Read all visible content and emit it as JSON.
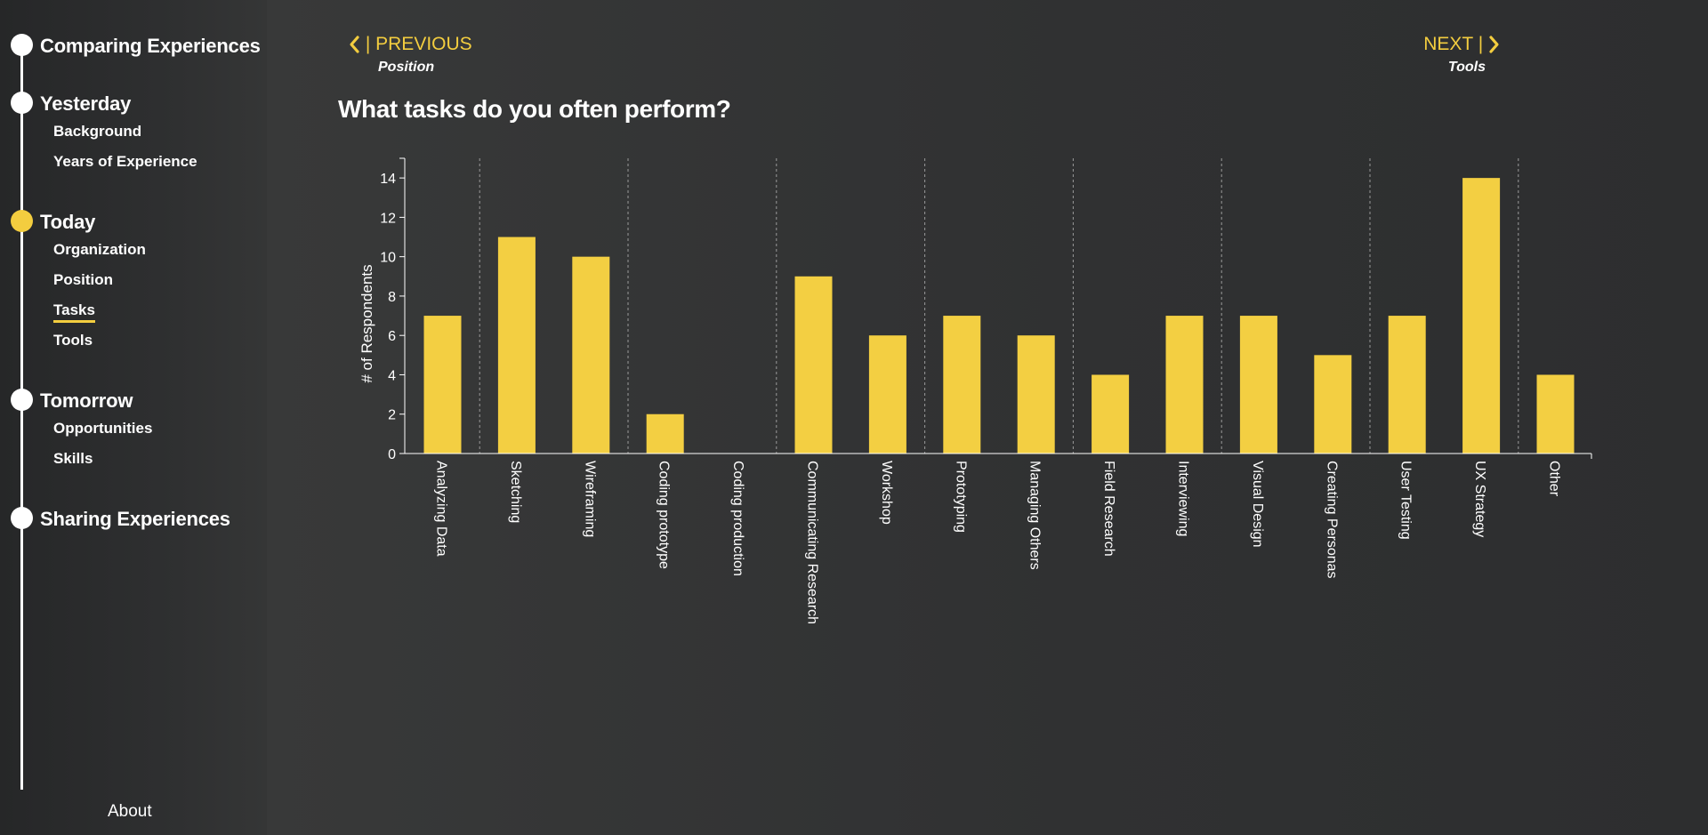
{
  "sidebar": {
    "sections": [
      {
        "title": "Comparing Experiences",
        "active": false,
        "items": []
      },
      {
        "title": "Yesterday",
        "active": false,
        "items": [
          "Background",
          "Years of Experience"
        ]
      },
      {
        "title": "Today",
        "active": true,
        "items": [
          "Organization",
          "Position",
          "Tasks",
          "Tools"
        ],
        "current_item": "Tasks"
      },
      {
        "title": "Tomorrow",
        "active": false,
        "items": [
          "Opportunities",
          "Skills"
        ]
      },
      {
        "title": "Sharing Experiences",
        "active": false,
        "items": []
      }
    ],
    "about_label": "About"
  },
  "nav": {
    "previous_label": "| PREVIOUS",
    "previous_page": "Position",
    "next_label": "NEXT |",
    "next_page": "Tools"
  },
  "question": "What tasks do you often perform?",
  "colors": {
    "accent": "#f3cd3f",
    "bar": "#f3cf42",
    "text": "#ffffff",
    "background": "#303132"
  },
  "icons": {
    "previous": "chevron-left-icon",
    "next": "chevron-right-icon"
  },
  "chart_data": {
    "type": "bar",
    "title": "",
    "xlabel": "",
    "ylabel": "# of Respondents",
    "ylim": [
      0,
      15
    ],
    "yticks": [
      0,
      2,
      4,
      6,
      8,
      10,
      12,
      14
    ],
    "grid": "vertical dashed separators between category groups",
    "categories": [
      "Analyzing Data",
      "Sketching",
      "Wireframing",
      "Coding prototype",
      "Coding production",
      "Communicating Research",
      "Workshop",
      "Prototyping",
      "Managing Others",
      "Field Research",
      "Interviewing",
      "Visual Design",
      "Creating Personas",
      "User Testing",
      "UX Strategy",
      "Other"
    ],
    "values": [
      7,
      11,
      10,
      2,
      0,
      9,
      6,
      7,
      6,
      4,
      7,
      7,
      5,
      7,
      14,
      4
    ],
    "separators_after": [
      1,
      3,
      5,
      7,
      9,
      11,
      13,
      15
    ]
  }
}
